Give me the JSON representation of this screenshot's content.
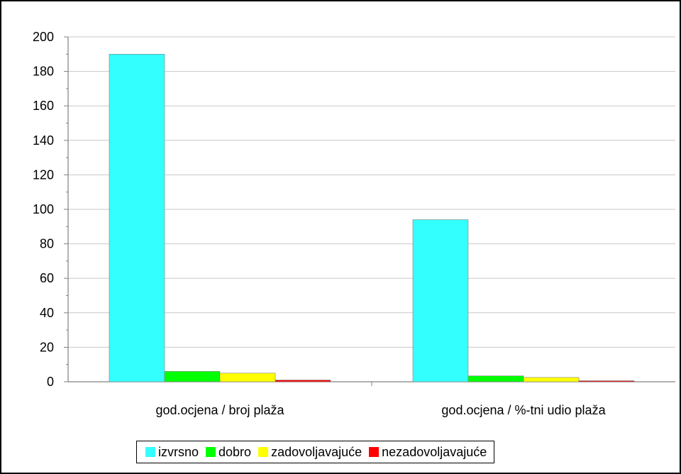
{
  "chart_data": {
    "type": "bar",
    "categories": [
      "god.ocjena / broj plaža",
      "god.ocjena / %-tni udio plaža"
    ],
    "series": [
      {
        "name": "izvrsno",
        "values": [
          190,
          94
        ],
        "color": "#33FFFF"
      },
      {
        "name": "dobro",
        "values": [
          6,
          3.4
        ],
        "color": "#00FF00"
      },
      {
        "name": "zadovoljavajuće",
        "values": [
          5,
          2.5
        ],
        "color": "#FFFF00"
      },
      {
        "name": "nezadovoljavajuće",
        "values": [
          1,
          0.6
        ],
        "color": "#FF0000"
      }
    ],
    "ylim": [
      0,
      200
    ],
    "yticks": [
      "0",
      "20",
      "40",
      "60",
      "80",
      "100",
      "120",
      "140",
      "160",
      "180",
      "200"
    ],
    "grid": true,
    "legend_position": "bottom"
  }
}
